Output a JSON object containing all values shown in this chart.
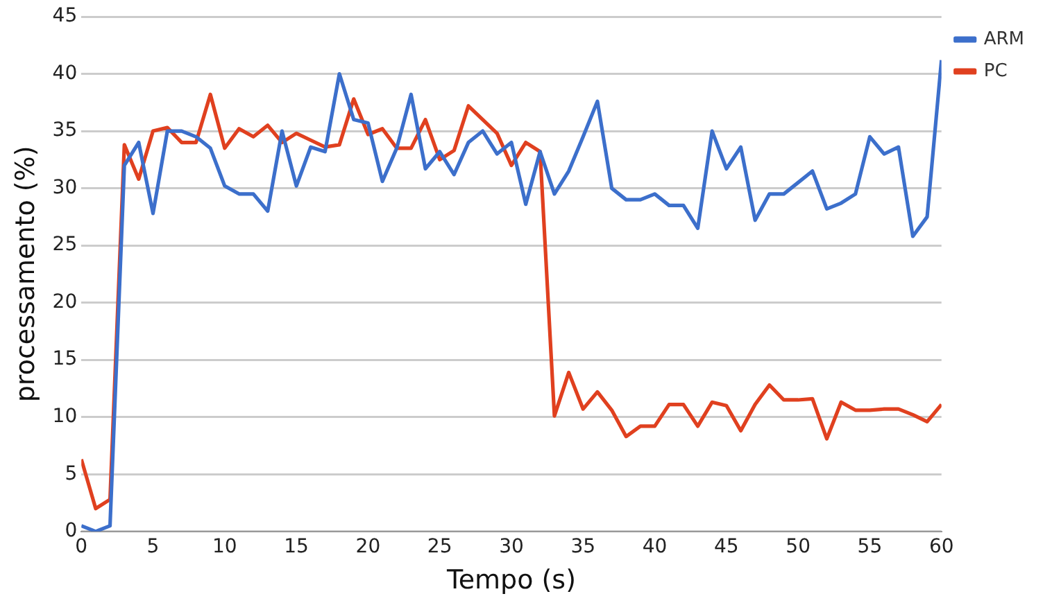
{
  "chart_data": {
    "type": "line",
    "xlabel": "Tempo (s)",
    "ylabel": "processamento (%)",
    "x": [
      0,
      1,
      2,
      3,
      4,
      5,
      6,
      7,
      8,
      9,
      10,
      11,
      12,
      13,
      14,
      15,
      16,
      17,
      18,
      19,
      20,
      21,
      22,
      23,
      24,
      25,
      26,
      27,
      28,
      29,
      30,
      31,
      32,
      33,
      34,
      35,
      36,
      37,
      38,
      39,
      40,
      41,
      42,
      43,
      44,
      45,
      46,
      47,
      48,
      49,
      50,
      51,
      52,
      53,
      54,
      55,
      56,
      57,
      58,
      59,
      60
    ],
    "series": [
      {
        "name": "ARM",
        "color": "#3c6fcb",
        "values": [
          0.5,
          0,
          0.5,
          32,
          34,
          27.8,
          35,
          35,
          34.5,
          33.5,
          30.2,
          29.5,
          29.5,
          28,
          35,
          30.2,
          33.6,
          33.2,
          40,
          36,
          35.7,
          30.6,
          33.5,
          38.2,
          31.7,
          33.2,
          31.2,
          34,
          35,
          33,
          34,
          28.6,
          33.2,
          29.5,
          31.5,
          34.5,
          37.6,
          30,
          29,
          29,
          29.5,
          28.5,
          28.5,
          26.5,
          35,
          31.7,
          33.6,
          27.2,
          29.5,
          29.5,
          30.5,
          31.5,
          28.2,
          28.7,
          29.5,
          34.5,
          33,
          33.6,
          25.8,
          27.5,
          41.2
        ]
      },
      {
        "name": "PC",
        "color": "#e0401f",
        "values": [
          6.3,
          2,
          2.8,
          33.8,
          30.8,
          35,
          35.3,
          34,
          34,
          38.2,
          33.5,
          35.2,
          34.5,
          35.5,
          34,
          34.8,
          34.2,
          33.6,
          33.8,
          37.8,
          34.7,
          35.2,
          33.5,
          33.5,
          36,
          32.5,
          33.3,
          37.2,
          36,
          34.8,
          32,
          34,
          33.2,
          10.1,
          13.9,
          10.7,
          12.2,
          10.6,
          8.3,
          9.2,
          9.2,
          11.1,
          11.1,
          9.2,
          11.3,
          11,
          8.8,
          11.1,
          12.8,
          11.5,
          11.5,
          11.6,
          8.1,
          11.3,
          10.6,
          10.6,
          10.7,
          10.7,
          10.2,
          9.6,
          11.1
        ]
      }
    ],
    "xlim": [
      0,
      60
    ],
    "xticks": [
      0,
      5,
      10,
      15,
      20,
      25,
      30,
      35,
      40,
      45,
      50,
      55,
      60
    ],
    "ylim": [
      0,
      45
    ],
    "yticks": [
      0,
      5,
      10,
      15,
      20,
      25,
      30,
      35,
      40,
      45
    ],
    "grid": "y",
    "legend": "top right",
    "marker": "none",
    "line_style": "solid"
  }
}
